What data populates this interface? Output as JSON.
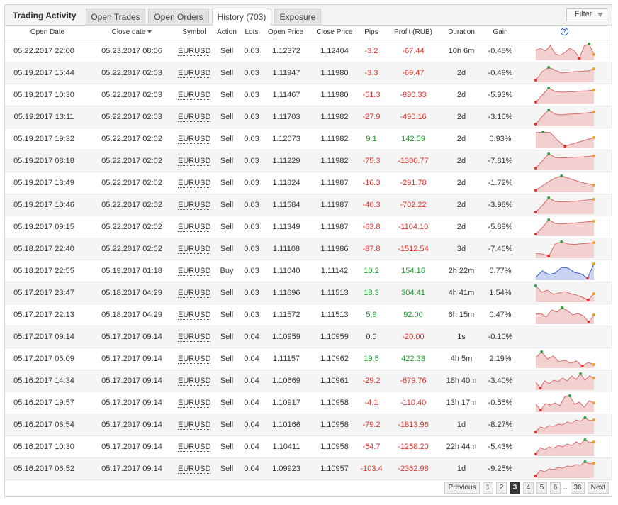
{
  "app_title": "Trading Activity",
  "tabs": [
    {
      "label": "Open Trades",
      "active": false
    },
    {
      "label": "Open Orders",
      "active": false
    },
    {
      "label": "History (703)",
      "active": true
    },
    {
      "label": "Exposure",
      "active": false
    }
  ],
  "filter_label": "Filter",
  "columns": {
    "open_date": "Open Date",
    "close_date": "Close date",
    "symbol": "Symbol",
    "action": "Action",
    "lots": "Lots",
    "open_price": "Open Price",
    "close_price": "Close Price",
    "pips": "Pips",
    "profit": "Profit (RUB)",
    "duration": "Duration",
    "gain": "Gain",
    "help": "?"
  },
  "colors": {
    "negative": "#e0302b",
    "positive": "#1e9c2e",
    "chart_fill": "#f2d0d0",
    "chart_line": "#d66a6a",
    "buy_fill": "#c9d3f2",
    "buy_line": "#3a5fcd",
    "start_marker": "#e0302b",
    "peak_marker": "#2ea043",
    "end_marker": "#f0a030"
  },
  "rows": [
    {
      "open": "05.22.2017 22:00",
      "close": "05.23.2017 08:06",
      "symbol": "EURUSD",
      "action": "Sell",
      "lots": "0.03",
      "open_price": "1.12372",
      "close_price": "1.12404",
      "pips": "-3.2",
      "profit": "-67.44",
      "duration": "10h 6m",
      "gain": "-0.48%",
      "spark": [
        0.55,
        0.7,
        0.5,
        0.9,
        0.3,
        0.2,
        0.4,
        0.7,
        0.5,
        0.0,
        0.85,
        1.0,
        0.25
      ]
    },
    {
      "open": "05.19.2017 15:44",
      "close": "05.22.2017 02:03",
      "symbol": "EURUSD",
      "action": "Sell",
      "lots": "0.03",
      "open_price": "1.11947",
      "close_price": "1.11980",
      "pips": "-3.3",
      "profit": "-69.47",
      "duration": "2d",
      "gain": "-0.49%",
      "spark": [
        0.0,
        0.6,
        0.9,
        0.7,
        0.5,
        0.55,
        0.6,
        0.62,
        0.65,
        0.8
      ]
    },
    {
      "open": "05.19.2017 10:30",
      "close": "05.22.2017 02:03",
      "symbol": "EURUSD",
      "action": "Sell",
      "lots": "0.03",
      "open_price": "1.11467",
      "close_price": "1.11980",
      "pips": "-51.3",
      "profit": "-890.33",
      "duration": "2d",
      "gain": "-5.93%",
      "spark": [
        0.0,
        0.5,
        1.0,
        0.75,
        0.7,
        0.72,
        0.74,
        0.78,
        0.8,
        0.85
      ]
    },
    {
      "open": "05.19.2017 13:11",
      "close": "05.22.2017 02:03",
      "symbol": "EURUSD",
      "action": "Sell",
      "lots": "0.03",
      "open_price": "1.11703",
      "close_price": "1.11982",
      "pips": "-27.9",
      "profit": "-490.16",
      "duration": "2d",
      "gain": "-3.16%",
      "spark": [
        0.0,
        0.55,
        1.0,
        0.7,
        0.65,
        0.7,
        0.72,
        0.75,
        0.8,
        0.85
      ]
    },
    {
      "open": "05.19.2017 19:32",
      "close": "05.22.2017 02:02",
      "symbol": "EURUSD",
      "action": "Sell",
      "lots": "0.03",
      "open_price": "1.12073",
      "close_price": "1.11982",
      "pips": "9.1",
      "profit": "142.59",
      "duration": "2d",
      "gain": "0.93%",
      "spark": [
        0.95,
        1.0,
        0.95,
        0.4,
        0.0,
        0.15,
        0.3,
        0.45,
        0.6
      ]
    },
    {
      "open": "05.19.2017 08:18",
      "close": "05.22.2017 02:02",
      "symbol": "EURUSD",
      "action": "Sell",
      "lots": "0.03",
      "open_price": "1.11229",
      "close_price": "1.11982",
      "pips": "-75.3",
      "profit": "-1300.77",
      "duration": "2d",
      "gain": "-7.81%",
      "spark": [
        0.0,
        0.5,
        1.0,
        0.75,
        0.72,
        0.74,
        0.76,
        0.78,
        0.82,
        0.86
      ]
    },
    {
      "open": "05.19.2017 13:49",
      "close": "05.22.2017 02:02",
      "symbol": "EURUSD",
      "action": "Sell",
      "lots": "0.03",
      "open_price": "1.11824",
      "close_price": "1.11987",
      "pips": "-16.3",
      "profit": "-291.78",
      "duration": "2d",
      "gain": "-1.72%",
      "spark": [
        0.0,
        0.3,
        0.6,
        0.85,
        1.0,
        0.85,
        0.7,
        0.55,
        0.45,
        0.35
      ]
    },
    {
      "open": "05.19.2017 10:46",
      "close": "05.22.2017 02:02",
      "symbol": "EURUSD",
      "action": "Sell",
      "lots": "0.03",
      "open_price": "1.11584",
      "close_price": "1.11987",
      "pips": "-40.3",
      "profit": "-702.22",
      "duration": "2d",
      "gain": "-3.98%",
      "spark": [
        0.0,
        0.45,
        1.0,
        0.75,
        0.72,
        0.74,
        0.76,
        0.8,
        0.85,
        0.9
      ]
    },
    {
      "open": "05.19.2017 09:15",
      "close": "05.22.2017 02:02",
      "symbol": "EURUSD",
      "action": "Sell",
      "lots": "0.03",
      "open_price": "1.11349",
      "close_price": "1.11987",
      "pips": "-63.8",
      "profit": "-1104.10",
      "duration": "2d",
      "gain": "-5.89%",
      "spark": [
        0.0,
        0.45,
        1.0,
        0.75,
        0.72,
        0.75,
        0.78,
        0.82,
        0.86,
        0.9
      ]
    },
    {
      "open": "05.18.2017 22:40",
      "close": "05.22.2017 02:02",
      "symbol": "EURUSD",
      "action": "Sell",
      "lots": "0.03",
      "open_price": "1.11108",
      "close_price": "1.11986",
      "pips": "-87.8",
      "profit": "-1512.54",
      "duration": "3d",
      "gain": "-7.46%",
      "spark": [
        0.2,
        0.15,
        0.0,
        0.85,
        1.0,
        0.85,
        0.82,
        0.86,
        0.9,
        0.95
      ]
    },
    {
      "open": "05.18.2017 22:55",
      "close": "05.19.2017 01:18",
      "symbol": "EURUSD",
      "action": "Buy",
      "lots": "0.03",
      "open_price": "1.11040",
      "close_price": "1.11142",
      "pips": "10.2",
      "profit": "154.16",
      "duration": "2h 22m",
      "gain": "0.77%",
      "spark": [
        0.05,
        0.5,
        0.25,
        0.35,
        0.75,
        0.7,
        0.4,
        0.3,
        0.0,
        1.0
      ],
      "buy": true
    },
    {
      "open": "05.17.2017 23:47",
      "close": "05.18.2017 04:29",
      "symbol": "EURUSD",
      "action": "Sell",
      "lots": "0.03",
      "open_price": "1.11696",
      "close_price": "1.11513",
      "pips": "18.3",
      "profit": "304.41",
      "duration": "4h 41m",
      "gain": "1.54%",
      "spark": [
        1.0,
        0.55,
        0.7,
        0.4,
        0.5,
        0.6,
        0.45,
        0.35,
        0.2,
        0.0,
        0.45
      ]
    },
    {
      "open": "05.17.2017 22:13",
      "close": "05.18.2017 04:29",
      "symbol": "EURUSD",
      "action": "Sell",
      "lots": "0.03",
      "open_price": "1.11572",
      "close_price": "1.11513",
      "pips": "5.9",
      "profit": "92.00",
      "duration": "6h 15m",
      "gain": "0.47%",
      "spark": [
        0.55,
        0.6,
        0.35,
        0.85,
        0.7,
        1.0,
        0.8,
        0.5,
        0.6,
        0.45,
        0.0,
        0.5
      ]
    },
    {
      "open": "05.17.2017 09:14",
      "close": "05.17.2017 09:14",
      "symbol": "EURUSD",
      "action": "Sell",
      "lots": "0.04",
      "open_price": "1.10959",
      "close_price": "1.10959",
      "pips": "0.0",
      "profit": "-20.00",
      "duration": "1s",
      "gain": "-0.10%",
      "spark": []
    },
    {
      "open": "05.17.2017 05:09",
      "close": "05.17.2017 09:14",
      "symbol": "EURUSD",
      "action": "Sell",
      "lots": "0.04",
      "open_price": "1.11157",
      "close_price": "1.10962",
      "pips": "19.5",
      "profit": "422.33",
      "duration": "4h 5m",
      "gain": "2.19%",
      "spark": [
        0.6,
        1.0,
        0.5,
        0.7,
        0.3,
        0.4,
        0.2,
        0.35,
        0.0,
        0.25,
        0.1
      ]
    },
    {
      "open": "05.16.2017 14:34",
      "close": "05.17.2017 09:14",
      "symbol": "EURUSD",
      "action": "Sell",
      "lots": "0.04",
      "open_price": "1.10669",
      "close_price": "1.10961",
      "pips": "-29.2",
      "profit": "-679.76",
      "duration": "18h 40m",
      "gain": "-3.40%",
      "spark": [
        0.4,
        0.0,
        0.5,
        0.3,
        0.55,
        0.45,
        0.7,
        0.5,
        0.85,
        0.6,
        1.0,
        0.55,
        0.85,
        0.7
      ]
    },
    {
      "open": "05.16.2017 19:57",
      "close": "05.17.2017 09:14",
      "symbol": "EURUSD",
      "action": "Sell",
      "lots": "0.04",
      "open_price": "1.10917",
      "close_price": "1.10958",
      "pips": "-4.1",
      "profit": "-110.40",
      "duration": "13h 17m",
      "gain": "-0.55%",
      "spark": [
        0.4,
        0.0,
        0.45,
        0.35,
        0.5,
        0.3,
        0.95,
        1.0,
        0.4,
        0.55,
        0.2,
        0.65,
        0.5
      ]
    },
    {
      "open": "05.16.2017 08:54",
      "close": "05.17.2017 09:14",
      "symbol": "EURUSD",
      "action": "Sell",
      "lots": "0.04",
      "open_price": "1.10166",
      "close_price": "1.10958",
      "pips": "-79.2",
      "profit": "-1813.96",
      "duration": "1d",
      "gain": "-8.27%",
      "spark": [
        0.0,
        0.35,
        0.25,
        0.45,
        0.4,
        0.55,
        0.5,
        0.7,
        0.6,
        0.85,
        0.75,
        1.0,
        0.8,
        0.85
      ]
    },
    {
      "open": "05.16.2017 10:30",
      "close": "05.17.2017 09:14",
      "symbol": "EURUSD",
      "action": "Sell",
      "lots": "0.04",
      "open_price": "1.10411",
      "close_price": "1.10958",
      "pips": "-54.7",
      "profit": "-1258.20",
      "duration": "22h 44m",
      "gain": "-5.43%",
      "spark": [
        0.0,
        0.45,
        0.3,
        0.5,
        0.4,
        0.6,
        0.5,
        0.7,
        0.6,
        0.85,
        0.7,
        1.0,
        0.8,
        0.85
      ]
    },
    {
      "open": "05.16.2017 06:52",
      "close": "05.17.2017 09:14",
      "symbol": "EURUSD",
      "action": "Sell",
      "lots": "0.04",
      "open_price": "1.09923",
      "close_price": "1.10957",
      "pips": "-103.4",
      "profit": "-2362.98",
      "duration": "1d",
      "gain": "-9.25%",
      "spark": [
        0.0,
        0.4,
        0.3,
        0.5,
        0.45,
        0.6,
        0.55,
        0.7,
        0.65,
        0.8,
        0.75,
        1.0,
        0.85,
        0.9
      ]
    }
  ],
  "pagination": {
    "previous": "Previous",
    "pages": [
      "1",
      "2",
      "3",
      "4",
      "5",
      "6"
    ],
    "current": "3",
    "ellipsis": "..",
    "last": "36",
    "next": "Next"
  }
}
